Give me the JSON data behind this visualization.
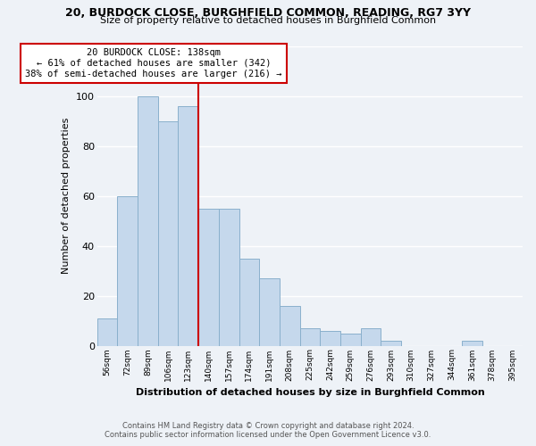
{
  "title1": "20, BURDOCK CLOSE, BURGHFIELD COMMON, READING, RG7 3YY",
  "title2": "Size of property relative to detached houses in Burghfield Common",
  "xlabel": "Distribution of detached houses by size in Burghfield Common",
  "ylabel": "Number of detached properties",
  "bar_labels": [
    "56sqm",
    "72sqm",
    "89sqm",
    "106sqm",
    "123sqm",
    "140sqm",
    "157sqm",
    "174sqm",
    "191sqm",
    "208sqm",
    "225sqm",
    "242sqm",
    "259sqm",
    "276sqm",
    "293sqm",
    "310sqm",
    "327sqm",
    "344sqm",
    "361sqm",
    "378sqm",
    "395sqm"
  ],
  "bar_heights": [
    11,
    60,
    100,
    90,
    96,
    55,
    55,
    35,
    27,
    16,
    7,
    6,
    5,
    7,
    2,
    0,
    0,
    0,
    2,
    0,
    0
  ],
  "bar_color": "#c5d8ec",
  "bar_edge_color": "#8ab0cc",
  "annotation_title": "20 BURDOCK CLOSE: 138sqm",
  "annotation_line1": "← 61% of detached houses are smaller (342)",
  "annotation_line2": "38% of semi-detached houses are larger (216) →",
  "reference_line_index": 5,
  "reference_line_color": "#cc0000",
  "ylim": [
    0,
    120
  ],
  "footnote1": "Contains HM Land Registry data © Crown copyright and database right 2024.",
  "footnote2": "Contains public sector information licensed under the Open Government Licence v3.0.",
  "bg_color": "#eef2f7"
}
